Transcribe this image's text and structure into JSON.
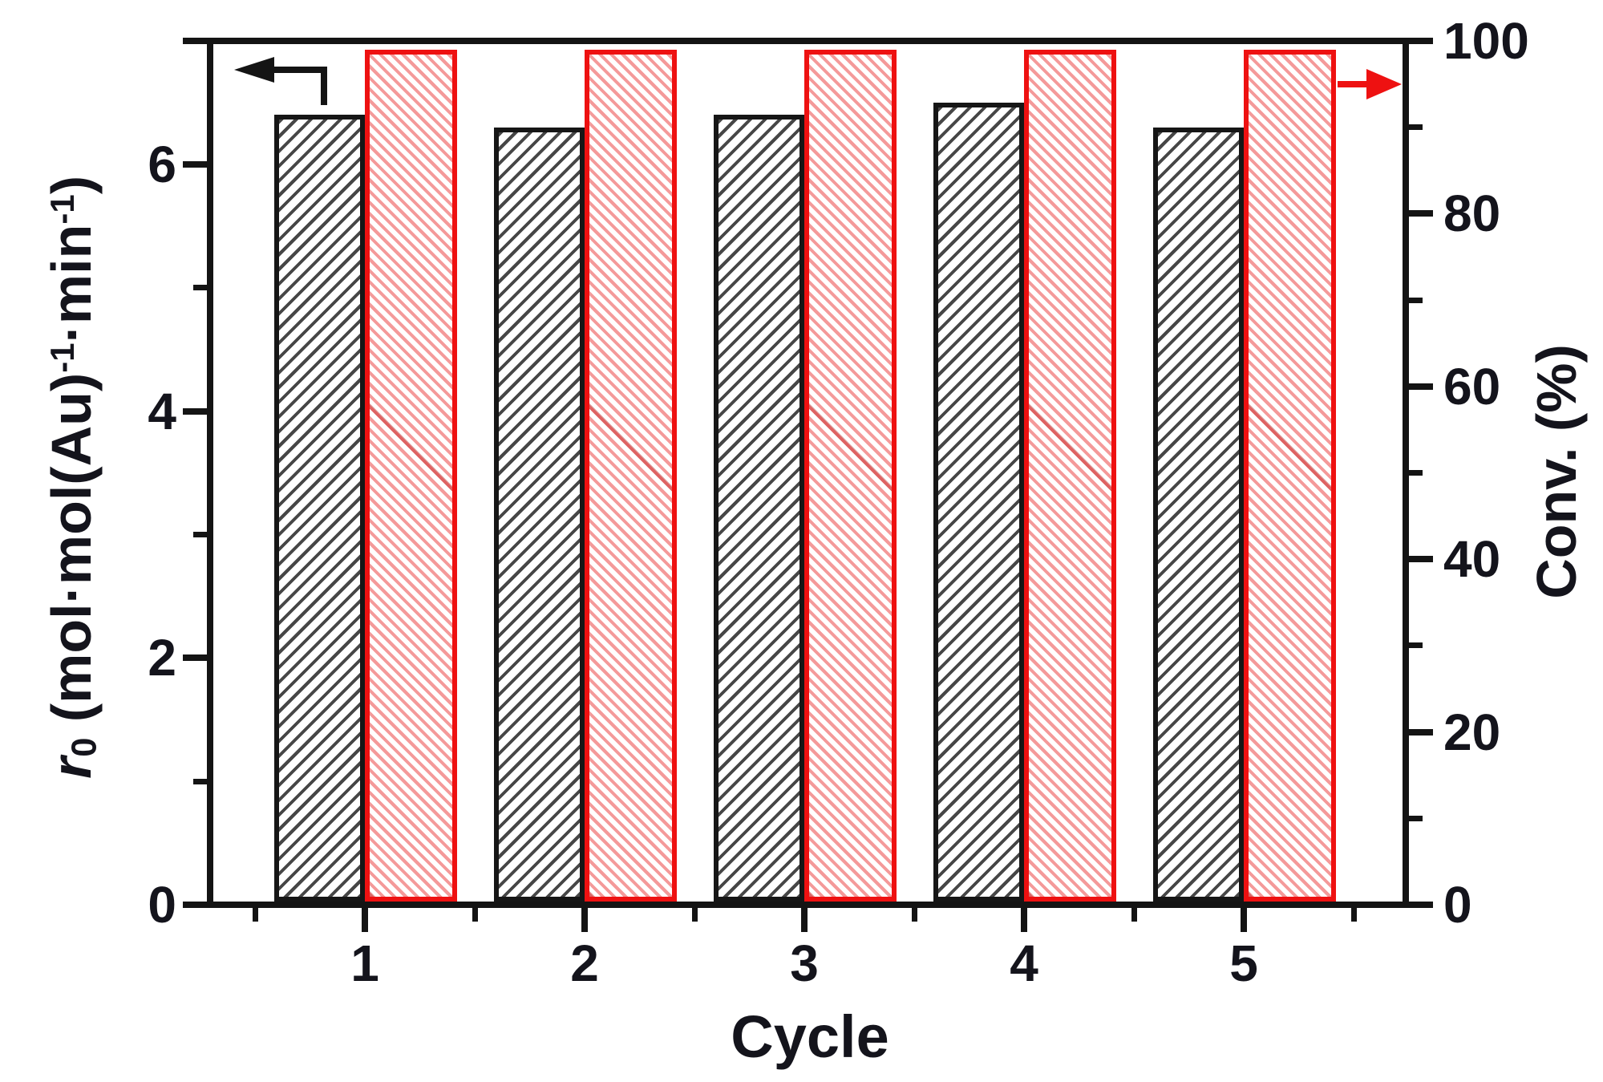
{
  "chart_data": {
    "type": "bar",
    "title": "",
    "categories": [
      "1",
      "2",
      "3",
      "4",
      "5"
    ],
    "series": [
      {
        "name": "r0 (mol·mol(Au)-1·min-1)",
        "axis": "left",
        "style": "black-hatched",
        "values": [
          6.4,
          6.3,
          6.4,
          6.5,
          6.3
        ]
      },
      {
        "name": "Conv. (%)",
        "axis": "right",
        "style": "red-hatched",
        "values": [
          99,
          99,
          99,
          99,
          99
        ]
      }
    ],
    "left_axis": {
      "title_italic": "r",
      "title_sub": "0",
      "title_p1": " (mol·mol(Au)",
      "title_sup1": "-1",
      "title_p2": "·min",
      "title_sup2": "-1",
      "title_p3": ")",
      "range": [
        0,
        7
      ],
      "major_ticks": [
        0,
        2,
        4,
        6
      ],
      "tick_labels": [
        "0",
        "2",
        "4",
        "6"
      ],
      "minor_ticks": [
        1,
        3,
        5
      ],
      "top_tick": 7
    },
    "right_axis": {
      "title": "Conv. (%)",
      "range": [
        0,
        100
      ],
      "major_ticks": [
        0,
        20,
        40,
        60,
        80,
        100
      ],
      "tick_labels": [
        "0",
        "20",
        "40",
        "60",
        "80",
        "100"
      ],
      "minor_ticks": [
        10,
        30,
        50,
        70,
        90
      ]
    },
    "x_axis": {
      "title": "Cycle",
      "tick_labels": [
        "1",
        "2",
        "3",
        "4",
        "5"
      ],
      "minor_tick_positions": [
        0.5,
        1.5,
        2.5,
        3.5,
        4.5,
        5.5
      ]
    },
    "annotations": [
      {
        "id": "left-axis-arrow",
        "shape": "elbow-arrow-pointing-left",
        "color": "#141414"
      },
      {
        "id": "right-axis-arrow",
        "shape": "arrow-pointing-right",
        "color": "#ee1111"
      }
    ],
    "colors": {
      "black_series": "#161616",
      "red_series": "#ee1111",
      "text": "#14141c",
      "background": "#ffffff"
    },
    "legend_position": "none",
    "grid": false
  }
}
